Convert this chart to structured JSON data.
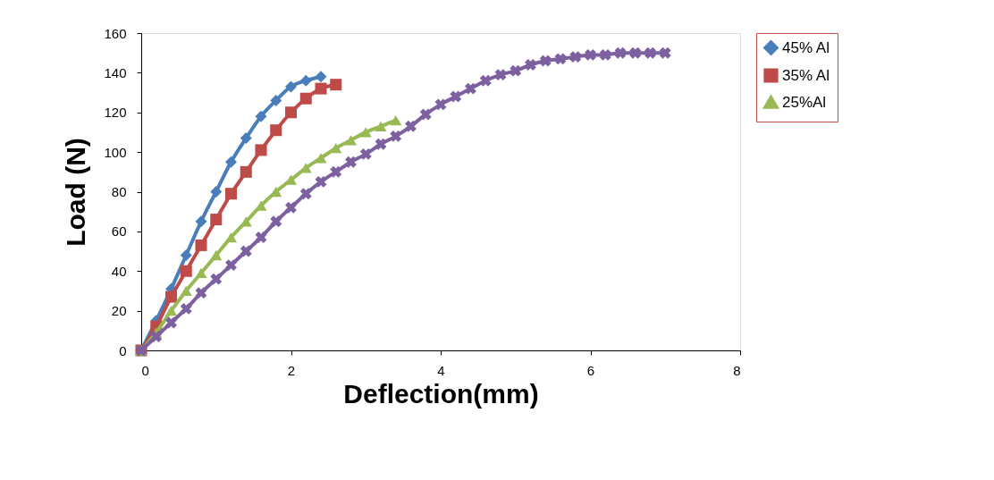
{
  "chart_data": {
    "type": "line",
    "xlabel": "Deflection(mm)",
    "ylabel": "Load (N)",
    "xlim": [
      0,
      8
    ],
    "xticks": [
      0,
      2,
      4,
      6,
      8
    ],
    "ylim": [
      0,
      160
    ],
    "yticks": [
      0,
      20,
      40,
      60,
      80,
      100,
      120,
      140,
      160
    ],
    "grid": false,
    "legend": "top right",
    "line_style": "solid",
    "series": [
      {
        "name": "45% Al",
        "color": "#4a7ebb",
        "marker": "diamond",
        "x": [
          0,
          0.2,
          0.4,
          0.6,
          0.8,
          1.0,
          1.2,
          1.4,
          1.6,
          1.8,
          2.0,
          2.2,
          2.4
        ],
        "values": [
          0,
          15,
          31,
          48,
          65,
          80,
          95,
          107,
          118,
          126,
          133,
          136,
          138
        ]
      },
      {
        "name": "35% Al",
        "color": "#be4b48",
        "marker": "square",
        "x": [
          0,
          0.2,
          0.4,
          0.6,
          0.8,
          1.0,
          1.2,
          1.4,
          1.6,
          1.8,
          2.0,
          2.2,
          2.4,
          2.6
        ],
        "values": [
          0,
          12,
          27,
          40,
          53,
          66,
          79,
          90,
          101,
          111,
          120,
          127,
          132,
          134
        ]
      },
      {
        "name": "25%Al",
        "color": "#98b954",
        "marker": "triangle",
        "x": [
          0,
          0.2,
          0.4,
          0.6,
          0.8,
          1.0,
          1.2,
          1.4,
          1.6,
          1.8,
          2.0,
          2.2,
          2.4,
          2.6,
          2.8,
          3.0,
          3.2,
          3.4
        ],
        "values": [
          0,
          9,
          20,
          30,
          39,
          48,
          57,
          65,
          73,
          80,
          86,
          92,
          97,
          102,
          106,
          110,
          113,
          116
        ]
      },
      {
        "color": "#7d60a0",
        "marker": "cross",
        "x": [
          0,
          0.2,
          0.4,
          0.6,
          0.8,
          1.0,
          1.2,
          1.4,
          1.6,
          1.8,
          2.0,
          2.2,
          2.4,
          2.6,
          2.8,
          3.0,
          3.2,
          3.4,
          3.6,
          3.8,
          4.0,
          4.2,
          4.4,
          4.6,
          4.8,
          5.0,
          5.2,
          5.4,
          5.6,
          5.8,
          6.0,
          6.2,
          6.4,
          6.6,
          6.8,
          7.0
        ],
        "values": [
          0,
          7,
          14,
          21,
          29,
          36,
          43,
          50,
          57,
          65,
          72,
          79,
          85,
          90,
          95,
          99,
          104,
          108,
          113,
          119,
          124,
          128,
          132,
          136,
          139,
          141,
          144,
          146,
          147,
          148,
          149,
          149,
          150,
          150,
          150,
          150
        ]
      }
    ]
  }
}
